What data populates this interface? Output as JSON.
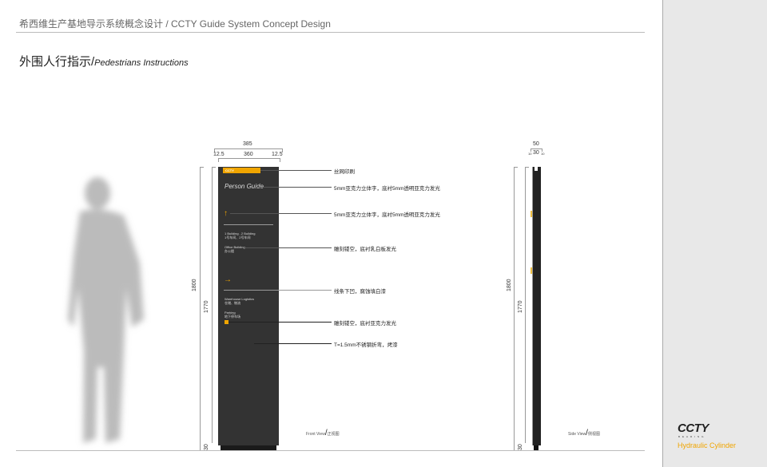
{
  "header": {
    "title": "希西维生产基地导示系统概念设计 / CCTY Guide System Concept Design"
  },
  "section": {
    "title_cn": "外围人行指示/",
    "title_en": "Pedestrians Instructions"
  },
  "front": {
    "dims": {
      "overall_width": "385",
      "left": "12.5",
      "center": "360",
      "right": "12.5",
      "height_total": "1800",
      "height_panel": "1770",
      "base": "30"
    },
    "sign": {
      "logo": "CCTY",
      "heading": "Person Guide",
      "items": [
        {
          "en": "1 Building , 2 Building",
          "cn": "1号车间、2号车间"
        },
        {
          "en": "Office Building",
          "cn": "办公楼"
        },
        {
          "en": "Warehouse Logistics",
          "cn": "仓储、物流"
        },
        {
          "en": "Parking",
          "cn": "地下停车场"
        }
      ]
    },
    "arrows": [
      "arrow-up-icon",
      "arrow-right-icon"
    ],
    "view_en": "Front View",
    "view_cn": "正视图"
  },
  "callouts": [
    "丝网印刷",
    "5mm亚克力立体字，底衬5mm透明亚克力发光",
    "5mm亚克力立体字，底衬5mm透明亚克力发光",
    "雕刻镂空，底衬乳白板发光",
    "线条下凹，腐蚀填白漆",
    "雕刻镂空，底衬亚克力发光",
    "T=1.5mm不锈钢折弯，烤漆"
  ],
  "side": {
    "dims": {
      "overall": "50",
      "left": "10",
      "center": "30",
      "right": "10",
      "height_total": "1800",
      "height_panel": "1770",
      "base": "30"
    },
    "view_en": "Side View",
    "view_cn": "侧视图"
  },
  "brand": {
    "logo": "CCTY",
    "logo_sub": "BEARING",
    "tagline": "Hydraulic Cylinder"
  },
  "colors": {
    "accent": "#f0a500",
    "sign": "#333333",
    "panel": "#e8e8e8"
  }
}
